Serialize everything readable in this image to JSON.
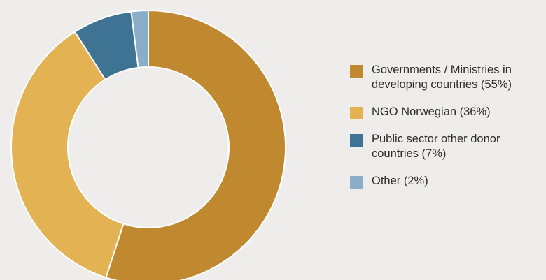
{
  "chart_data": {
    "type": "pie",
    "style": "donut",
    "legend_position": "right",
    "slices": [
      {
        "label": "Governments / Ministries in developing countries (55%)",
        "value": 55,
        "color": "#c0892f"
      },
      {
        "label": "NGO Norwegian (36%)",
        "value": 36,
        "color": "#e3b253"
      },
      {
        "label": "Public sector other donor countries (7%)",
        "value": 7,
        "color": "#3f7393"
      },
      {
        "label": "Other (2%)",
        "value": 2,
        "color": "#8aadc9"
      }
    ]
  }
}
